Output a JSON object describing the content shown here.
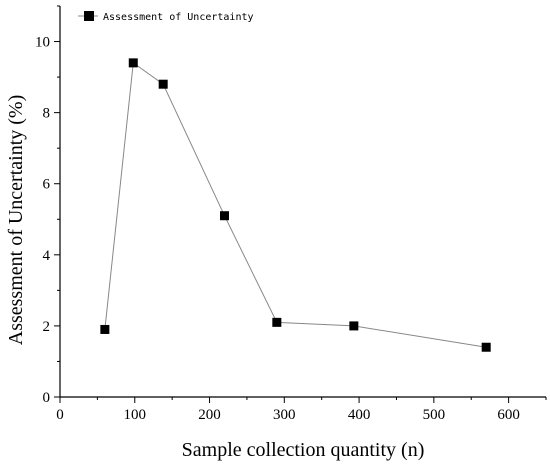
{
  "chart_data": {
    "type": "line",
    "title": "",
    "xlabel": "Sample collection quantity (n)",
    "ylabel": "Assessment of Uncertainty (%)",
    "xlim": [
      0,
      650
    ],
    "ylim": [
      0,
      11
    ],
    "xticks": [
      0,
      100,
      200,
      300,
      400,
      500,
      600
    ],
    "yticks": [
      0,
      2,
      4,
      6,
      8,
      10
    ],
    "legend_position": "top-left",
    "grid": false,
    "series": [
      {
        "name": "Assessment of Uncertainty",
        "color": "#000000",
        "line_color": "#888888",
        "marker": "square",
        "x": [
          60,
          98,
          138,
          220,
          290,
          393,
          570
        ],
        "y": [
          1.9,
          9.4,
          8.8,
          5.1,
          2.1,
          2.0,
          1.4
        ]
      }
    ]
  }
}
